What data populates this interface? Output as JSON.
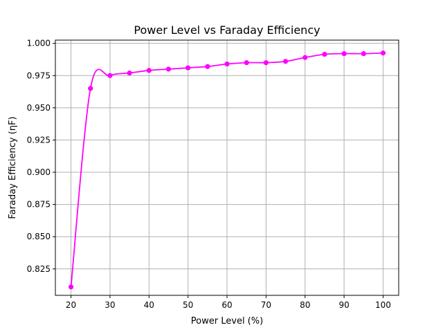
{
  "chart_data": {
    "type": "line",
    "title": "Power Level vs Faraday Efficiency",
    "xlabel": "Power Level (%)",
    "ylabel": "Faraday Efficiency (ηF)",
    "xlim": [
      16,
      104
    ],
    "ylim": [
      0.8045,
      1.0025
    ],
    "xticks": [
      20,
      30,
      40,
      50,
      60,
      70,
      80,
      90,
      100
    ],
    "yticks": [
      0.825,
      0.85,
      0.875,
      0.9,
      0.925,
      0.95,
      0.975,
      1.0
    ],
    "ytick_labels": [
      "0.825",
      "0.850",
      "0.875",
      "0.900",
      "0.925",
      "0.950",
      "0.975",
      "1.000"
    ],
    "grid": true,
    "color": "#ff00ff",
    "series": [
      {
        "x": [
          20,
          25,
          30,
          35,
          40,
          45,
          50,
          55,
          60,
          65,
          70,
          75,
          80,
          85,
          90,
          95,
          100
        ],
        "values": [
          0.811,
          0.965,
          0.975,
          0.977,
          0.979,
          0.98,
          0.981,
          0.982,
          0.984,
          0.985,
          0.985,
          0.986,
          0.989,
          0.9915,
          0.992,
          0.992,
          0.9925
        ]
      }
    ]
  }
}
